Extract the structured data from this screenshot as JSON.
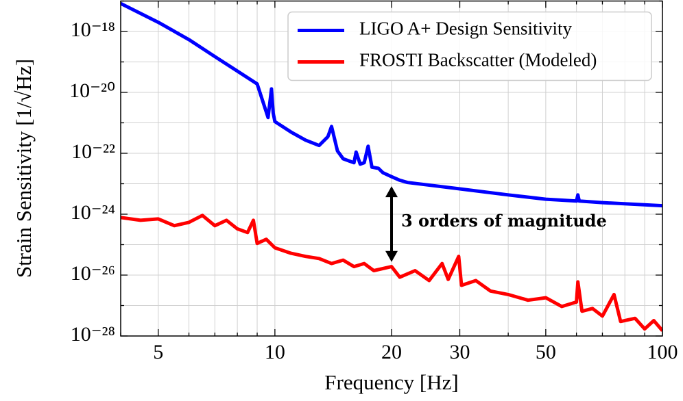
{
  "chart_data": {
    "type": "line",
    "xlabel": "Frequency [Hz]",
    "ylabel": "Strain Sensitivity [1/√Hz]",
    "xscale": "log",
    "yscale": "log",
    "grid": true,
    "legend": "upper right",
    "xlim": [
      4,
      100
    ],
    "ylim": [
      1e-28,
      1e-17
    ],
    "xticks": [
      5,
      10,
      20,
      30,
      50,
      100
    ],
    "xminorticks": [
      4,
      6,
      7,
      8,
      9,
      40,
      60,
      70,
      80,
      90
    ],
    "yticks": [
      {
        "value": 1e-28,
        "label": "10⁻²⁸"
      },
      {
        "value": 1e-26,
        "label": "10⁻²⁶"
      },
      {
        "value": 1e-24,
        "label": "10⁻²⁴"
      },
      {
        "value": 1e-22,
        "label": "10⁻²²"
      },
      {
        "value": 1e-20,
        "label": "10⁻²⁰"
      },
      {
        "value": 1e-18,
        "label": "10⁻¹⁸"
      }
    ],
    "yminorticks": [
      1e-27,
      1e-25,
      1e-23,
      1e-21,
      1e-19,
      1e-17
    ],
    "series": [
      {
        "name": "LIGO A+ Design Sensitivity",
        "color": "#0000ff",
        "x": [
          4,
          5,
          6,
          7,
          8,
          9,
          9.6,
          9.8,
          9.9,
          10,
          11,
          12,
          13,
          13.7,
          14,
          14.5,
          15,
          16,
          16.2,
          16.6,
          17,
          17.4,
          17.8,
          18.5,
          19,
          20,
          21,
          22,
          30,
          40,
          50,
          60,
          60.5,
          61,
          70,
          100
        ],
        "values": [
          8.3e-18,
          2e-18,
          5.4e-19,
          1.5e-19,
          5e-20,
          1.9e-20,
          1.5e-21,
          1.3e-20,
          2.1e-21,
          1.1e-21,
          5e-22,
          2.7e-22,
          1.8e-22,
          3.5e-22,
          7.6e-22,
          1.2e-22,
          6.6e-23,
          4.9e-23,
          1.1e-22,
          4.4e-23,
          4.9e-23,
          1.7e-22,
          3.5e-23,
          3.2e-23,
          2.3e-23,
          1.7e-23,
          1.3e-23,
          1.1e-23,
          6.8e-24,
          4.3e-24,
          3.1e-24,
          2.7e-24,
          4.3e-24,
          2.7e-24,
          2.4e-24,
          1.9e-24
        ]
      },
      {
        "name": "FROSTI Backscatter (Modeled)",
        "color": "#ff0000",
        "x": [
          4,
          4.5,
          5,
          5.5,
          6,
          6.5,
          7,
          7.5,
          8,
          8.5,
          8.8,
          9,
          9.5,
          10,
          11,
          12,
          13,
          14,
          15,
          16,
          17,
          18,
          20,
          21,
          23,
          25,
          27,
          28,
          29.8,
          30.3,
          33,
          36,
          40,
          45,
          50,
          55,
          60,
          60.5,
          62,
          66,
          70,
          75,
          78,
          85,
          90,
          95,
          100
        ],
        "values": [
          7.8e-25,
          6.3e-25,
          7e-25,
          4.2e-25,
          5.4e-25,
          9.1e-25,
          4.2e-25,
          6.3e-25,
          3.3e-25,
          2.5e-25,
          6.3e-25,
          1.1e-25,
          1.5e-25,
          7.9e-26,
          5.2e-26,
          4.1e-26,
          3.5e-26,
          2.4e-26,
          3.1e-26,
          1.9e-26,
          2.4e-26,
          1.4e-26,
          1.9e-26,
          8.5e-27,
          1.4e-26,
          6.6e-27,
          2.4e-26,
          7.2e-27,
          4.1e-26,
          4.6e-27,
          6.6e-27,
          3e-27,
          2.3e-27,
          1.5e-27,
          1.8e-27,
          9.3e-28,
          1.3e-27,
          6e-27,
          6.5e-28,
          8e-28,
          4.5e-28,
          2.3e-27,
          3e-28,
          3.8e-28,
          1.7e-28,
          3.2e-28,
          1.5e-28
        ]
      }
    ],
    "annotation": {
      "text": "3 orders of magnitude",
      "arrow_x": 20,
      "arrow_y": [
        8.3e-24,
        2.7e-26
      ]
    }
  }
}
